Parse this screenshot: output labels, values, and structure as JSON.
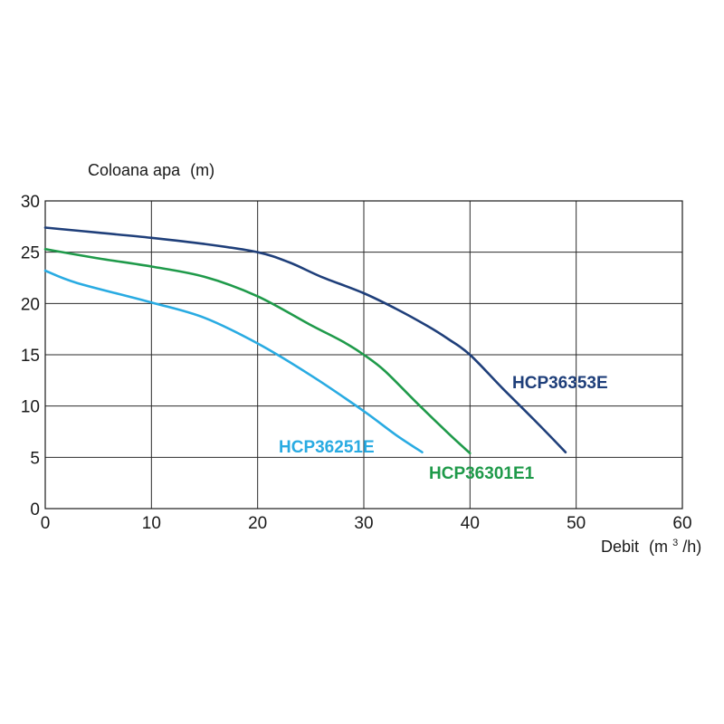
{
  "chart_data": {
    "type": "line",
    "ylabel": {
      "text": "Coloana apa",
      "unit": "(m)"
    },
    "xlabel": {
      "text": "Debit",
      "unit_prefix": "(m",
      "unit_sup": "3",
      "unit_suffix": "/h)"
    },
    "xlim": [
      0,
      60
    ],
    "ylim": [
      0,
      30
    ],
    "x_ticks": [
      0,
      10,
      20,
      30,
      40,
      50,
      60
    ],
    "y_ticks": [
      0,
      5,
      10,
      15,
      20,
      25,
      30
    ],
    "grid": true,
    "series": [
      {
        "name": "HCP36353E",
        "color": "#1f3f7a",
        "x": [
          0,
          5,
          10,
          15,
          20,
          23,
          26,
          30,
          33,
          36,
          38,
          40,
          43,
          46,
          49
        ],
        "y": [
          27.4,
          26.9,
          26.4,
          25.8,
          25.0,
          24.0,
          22.6,
          21.0,
          19.5,
          17.8,
          16.5,
          15.0,
          11.8,
          8.7,
          5.5
        ]
      },
      {
        "name": "HCP36301E1",
        "color": "#1f9a4a",
        "x": [
          0,
          5,
          10,
          15,
          20,
          25,
          28,
          30,
          32,
          35,
          38,
          40
        ],
        "y": [
          25.3,
          24.4,
          23.6,
          22.6,
          20.7,
          17.9,
          16.3,
          15.0,
          13.4,
          10.3,
          7.3,
          5.4
        ]
      },
      {
        "name": "HCP36251E",
        "color": "#29abe2",
        "x": [
          0,
          3,
          10,
          15,
          20,
          25,
          30,
          33,
          35.5
        ],
        "y": [
          23.2,
          22.0,
          20.1,
          18.6,
          16.1,
          13.0,
          9.5,
          7.2,
          5.5
        ]
      }
    ]
  }
}
